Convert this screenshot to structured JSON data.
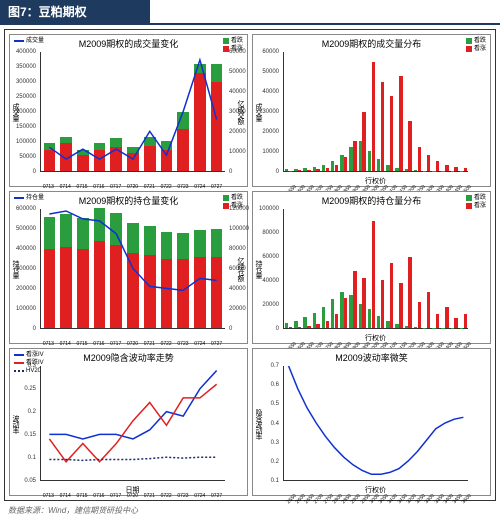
{
  "header": {
    "title": "图7：豆粕期权"
  },
  "footer": {
    "source": "数据来源：Wind，建信期货研投中心"
  },
  "colors": {
    "green": "#2a9d3f",
    "red": "#e02020",
    "blue": "#1030d0",
    "darkblue_dash": "#1a2a6b",
    "border": "#888888"
  },
  "panels": {
    "p1": {
      "title": "M2009期权的成交量变化",
      "type": "stacked-bar+line",
      "legend_left": [
        {
          "style": "line",
          "color": "#1030d0",
          "label": "成交量"
        }
      ],
      "legend_right": [
        {
          "style": "sq",
          "color": "#2a9d3f",
          "label": "看跌"
        },
        {
          "style": "sq",
          "color": "#e02020",
          "label": "看涨"
        }
      ],
      "ylabel": "成交量",
      "y2label": "亿成交额",
      "x": [
        "0713",
        "0714",
        "0715",
        "0716",
        "0717",
        "0720",
        "0721",
        "0722",
        "0723",
        "0724",
        "0727"
      ],
      "y_ticks": [
        0,
        50000,
        100000,
        150000,
        200000,
        250000,
        300000,
        350000,
        400000
      ],
      "y2_ticks": [
        0,
        10000,
        20000,
        30000,
        40000,
        50000,
        60000
      ],
      "red": [
        70000,
        95000,
        55000,
        70000,
        80000,
        60000,
        85000,
        72000,
        140000,
        330000,
        300000
      ],
      "green": [
        25000,
        20000,
        15000,
        25000,
        30000,
        20000,
        30000,
        28000,
        60000,
        30000,
        60000
      ],
      "line": [
        12000,
        6000,
        11000,
        6000,
        11000,
        6000,
        20000,
        8000,
        30000,
        56000,
        26000
      ],
      "ymax": 400000,
      "y2max": 60000
    },
    "p2": {
      "title": "M2009期权的成交量分布",
      "type": "grouped-bar",
      "legend_right": [
        {
          "style": "sq",
          "color": "#2a9d3f",
          "label": "看跌"
        },
        {
          "style": "sq",
          "color": "#e02020",
          "label": "看涨"
        }
      ],
      "ylabel": "成交量",
      "xlabel": "行权价",
      "x": [
        "2550",
        "2600",
        "2650",
        "2700",
        "2750",
        "2800",
        "2850",
        "2900",
        "2950",
        "3000",
        "3050",
        "3100",
        "3150",
        "3200",
        "3250",
        "3300",
        "3350",
        "3400",
        "3450",
        "3500"
      ],
      "y_ticks": [
        0,
        10000,
        20000,
        30000,
        40000,
        50000,
        60000
      ],
      "green": [
        1000,
        1200,
        1500,
        2000,
        3000,
        5000,
        8000,
        12000,
        15000,
        10000,
        6000,
        3000,
        1500,
        800,
        400,
        200,
        100,
        100,
        100,
        100
      ],
      "red": [
        200,
        300,
        500,
        800,
        1500,
        3000,
        7000,
        15000,
        30000,
        55000,
        45000,
        38000,
        48000,
        25000,
        12000,
        8000,
        5000,
        3000,
        2000,
        1500
      ],
      "ymax": 60000
    },
    "p3": {
      "title": "M2009期权的持仓量变化",
      "type": "stacked-bar+line",
      "legend_left": [
        {
          "style": "line",
          "color": "#1030d0",
          "label": "持仓量"
        }
      ],
      "legend_right": [
        {
          "style": "sq",
          "color": "#2a9d3f",
          "label": "看跌"
        },
        {
          "style": "sq",
          "color": "#e02020",
          "label": "看涨"
        }
      ],
      "ylabel": "持仓量",
      "y2label": "亿持仓额",
      "x": [
        "0713",
        "0714",
        "0715",
        "0716",
        "0717",
        "0720",
        "0721",
        "0722",
        "0723",
        "0724",
        "0727"
      ],
      "y_ticks": [
        0,
        100000,
        200000,
        300000,
        400000,
        500000,
        600000
      ],
      "y2_ticks": [
        0,
        20000,
        40000,
        60000,
        80000,
        100000,
        120000
      ],
      "red": [
        400000,
        410000,
        400000,
        440000,
        420000,
        380000,
        370000,
        350000,
        350000,
        360000,
        360000
      ],
      "green": [
        160000,
        165000,
        155000,
        165000,
        160000,
        150000,
        145000,
        135000,
        130000,
        135000,
        140000
      ],
      "line": [
        115000,
        118000,
        110000,
        108000,
        95000,
        60000,
        42000,
        40000,
        38000,
        50000,
        48000
      ],
      "ymax": 600000,
      "y2max": 120000
    },
    "p4": {
      "title": "M2009期权的持仓量分布",
      "type": "grouped-bar",
      "legend_right": [
        {
          "style": "sq",
          "color": "#2a9d3f",
          "label": "看跌"
        },
        {
          "style": "sq",
          "color": "#e02020",
          "label": "看涨"
        }
      ],
      "ylabel": "持仓量",
      "xlabel": "行权价",
      "x": [
        "2550",
        "2600",
        "2650",
        "2700",
        "2750",
        "2800",
        "2850",
        "2900",
        "2950",
        "3000",
        "3050",
        "3100",
        "3150",
        "3200",
        "3250",
        "3300",
        "3350",
        "3400",
        "3450",
        "3500"
      ],
      "y_ticks": [
        0,
        20000,
        40000,
        60000,
        80000,
        100000
      ],
      "green": [
        4000,
        6000,
        9000,
        13000,
        18000,
        24000,
        30000,
        28000,
        20000,
        16000,
        10000,
        6000,
        3000,
        1500,
        800,
        400,
        200,
        200,
        200,
        200
      ],
      "red": [
        500,
        800,
        1500,
        3000,
        6000,
        12000,
        25000,
        48000,
        42000,
        90000,
        40000,
        55000,
        38000,
        60000,
        22000,
        30000,
        12000,
        18000,
        8000,
        12000
      ],
      "ymax": 100000
    },
    "p5": {
      "title": "M2009隐含波动率走势",
      "type": "lines",
      "legend_left": [
        {
          "style": "line",
          "color": "#1030d0",
          "label": "看涨IV"
        },
        {
          "style": "line",
          "color": "#e02020",
          "label": "看跌IV"
        },
        {
          "style": "dash",
          "color": "#1a2a6b",
          "label": "HV20"
        }
      ],
      "ylabel": "波动率",
      "xlabel": "日期",
      "x": [
        "0713",
        "0714",
        "0715",
        "0716",
        "0717",
        "0720",
        "0721",
        "0722",
        "0723",
        "0724",
        "0727"
      ],
      "y_ticks": [
        0.05,
        0.1,
        0.15,
        0.2,
        0.25,
        0.3
      ],
      "blue": [
        0.15,
        0.15,
        0.14,
        0.15,
        0.15,
        0.14,
        0.16,
        0.2,
        0.19,
        0.25,
        0.29
      ],
      "red": [
        0.14,
        0.09,
        0.13,
        0.09,
        0.13,
        0.18,
        0.22,
        0.17,
        0.23,
        0.23,
        0.26
      ],
      "dash": [
        0.095,
        0.095,
        0.093,
        0.095,
        0.095,
        0.095,
        0.097,
        0.1,
        0.098,
        0.1,
        0.1
      ],
      "ymin": 0.05,
      "ymax": 0.3
    },
    "p6": {
      "title": "M2009波动率微笑",
      "type": "line",
      "ylabel": "隐含波动率",
      "xlabel": "行权价",
      "x": [
        "2550",
        "2600",
        "2650",
        "2700",
        "2750",
        "2800",
        "2850",
        "2900",
        "2950",
        "3000",
        "3050",
        "3100",
        "3150",
        "3200",
        "3250",
        "3300",
        "3350",
        "3400",
        "3450",
        "3500"
      ],
      "y_ticks": [
        0.1,
        0.2,
        0.3,
        0.4,
        0.5,
        0.6,
        0.7
      ],
      "blue": [
        0.7,
        0.58,
        0.48,
        0.4,
        0.33,
        0.27,
        0.22,
        0.18,
        0.15,
        0.13,
        0.13,
        0.14,
        0.16,
        0.2,
        0.25,
        0.31,
        0.37,
        0.4,
        0.42,
        0.43
      ],
      "ymin": 0.1,
      "ymax": 0.7
    }
  }
}
